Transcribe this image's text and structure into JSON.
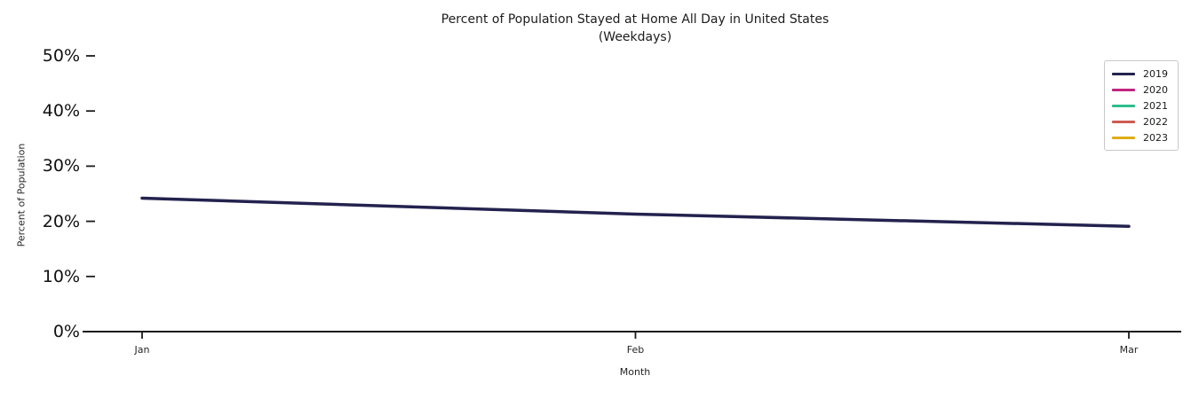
{
  "chart_data": {
    "type": "line",
    "title": "Percent of Population Stayed at Home All Day in United States",
    "subtitle": "(Weekdays)",
    "xlabel": "Month",
    "ylabel": "Percent of Population",
    "categories": [
      "Jan",
      "Feb",
      "Mar"
    ],
    "yticks_pct": [
      0,
      10,
      20,
      30,
      40,
      50
    ],
    "ytick_labels": [
      "0%",
      "10%",
      "20%",
      "30%",
      "40%",
      "50%"
    ],
    "ylim": [
      0,
      52
    ],
    "grid": false,
    "legend_position": "upper right",
    "series": [
      {
        "name": "2019",
        "color": "#23224E",
        "values": [
          24.2,
          21.3,
          19.1
        ]
      },
      {
        "name": "2020",
        "color": "#C0267F",
        "values": []
      },
      {
        "name": "2021",
        "color": "#2DBD8E",
        "values": []
      },
      {
        "name": "2022",
        "color": "#CD5B51",
        "values": []
      },
      {
        "name": "2023",
        "color": "#DFAC16",
        "values": []
      }
    ],
    "axis_color": "#1a1a1a"
  }
}
